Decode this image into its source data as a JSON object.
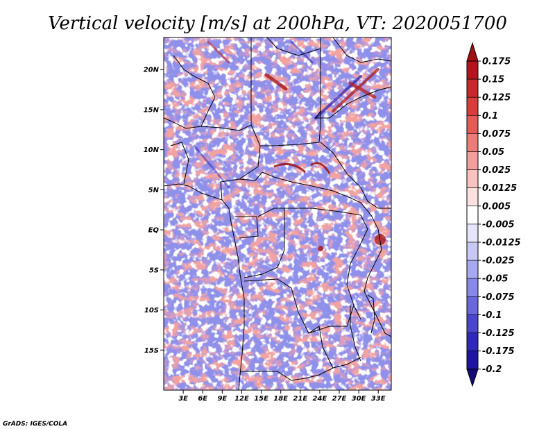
{
  "chart_data": {
    "type": "heatmap",
    "title": "Vertical velocity [m/s] at 200hPa, VT: 2020051700",
    "variable": "Vertical velocity",
    "units": "m/s",
    "level": "200hPa",
    "valid_time": "2020051700",
    "credit": "GrADS: IGES/COLA",
    "lon_range": [
      0,
      35
    ],
    "lat_range": [
      -20,
      24
    ],
    "x_ticks": [
      {
        "value": 3,
        "label": "3E"
      },
      {
        "value": 6,
        "label": "6E"
      },
      {
        "value": 9,
        "label": "9E"
      },
      {
        "value": 12,
        "label": "12E"
      },
      {
        "value": 15,
        "label": "15E"
      },
      {
        "value": 18,
        "label": "18E"
      },
      {
        "value": 21,
        "label": "21E"
      },
      {
        "value": 24,
        "label": "24E"
      },
      {
        "value": 27,
        "label": "27E"
      },
      {
        "value": 30,
        "label": "30E"
      },
      {
        "value": 33,
        "label": "33E"
      }
    ],
    "y_ticks": [
      {
        "value": 20,
        "label": "20N"
      },
      {
        "value": 15,
        "label": "15N"
      },
      {
        "value": 10,
        "label": "10N"
      },
      {
        "value": 5,
        "label": "5N"
      },
      {
        "value": 0,
        "label": "EQ"
      },
      {
        "value": -5,
        "label": "5S"
      },
      {
        "value": -10,
        "label": "10S"
      },
      {
        "value": -15,
        "label": "15S"
      }
    ],
    "colorbar": {
      "labels": [
        "0.175",
        "0.15",
        "0.125",
        "0.1",
        "0.075",
        "0.05",
        "0.025",
        "0.0125",
        "0.005",
        "-0.005",
        "-0.0125",
        "-0.025",
        "-0.05",
        "-0.075",
        "-0.1",
        "-0.125",
        "-0.175",
        "-0.2"
      ],
      "colors": [
        "#a01010",
        "#b4141e",
        "#c8282d",
        "#d83c3c",
        "#e45a56",
        "#ec7c78",
        "#f29e9a",
        "#f7c2c0",
        "#fbe0e0",
        "#ffffff",
        "#e4e4fa",
        "#c8c8f5",
        "#a8a8ee",
        "#8a88e6",
        "#6a66dc",
        "#4a46cc",
        "#3028b8",
        "#1e14a0",
        "#140a78"
      ]
    }
  }
}
